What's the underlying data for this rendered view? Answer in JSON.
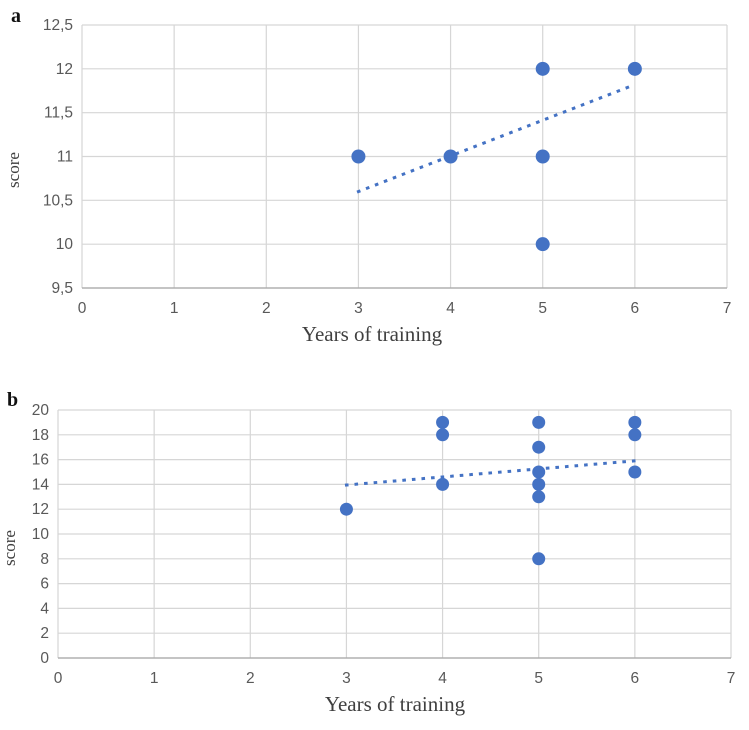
{
  "figure": {
    "background": "#ffffff"
  },
  "chart_data": [
    {
      "type": "scatter",
      "panel_label": "a",
      "title": "",
      "xlabel": "Years of training",
      "ylabel": "score",
      "xlim": [
        0,
        7
      ],
      "ylim": [
        9.5,
        12.5
      ],
      "xticks": [
        0,
        1,
        2,
        3,
        4,
        5,
        6,
        7
      ],
      "xtick_labels": [
        "0",
        "1",
        "2",
        "3",
        "4",
        "5",
        "6",
        "7"
      ],
      "yticks": [
        9.5,
        10,
        10.5,
        11,
        11.5,
        12,
        12.5
      ],
      "ytick_labels": [
        "9,5",
        "10",
        "10,5",
        "11",
        "11,5",
        "12",
        "12,5"
      ],
      "grid": true,
      "legend": "none",
      "points": [
        {
          "x": 3,
          "y": 11
        },
        {
          "x": 4,
          "y": 11
        },
        {
          "x": 5,
          "y": 10
        },
        {
          "x": 5,
          "y": 11
        },
        {
          "x": 5,
          "y": 12
        },
        {
          "x": 6,
          "y": 12
        }
      ],
      "trendline": {
        "style": "dotted",
        "x1": 3,
        "y1": 10.6,
        "x2": 6,
        "y2": 11.82
      },
      "colors": {
        "marker": "#4472C4",
        "trendline": "#4472C4",
        "gridline": "#D6D6D6",
        "axis_line": "#A6A6A6",
        "tick_text": "#595959",
        "axis_title_text": "#3F3F3F"
      }
    },
    {
      "type": "scatter",
      "panel_label": "b",
      "title": "",
      "xlabel": "Years of training",
      "ylabel": "score",
      "xlim": [
        0,
        7
      ],
      "ylim": [
        0,
        20
      ],
      "xticks": [
        0,
        1,
        2,
        3,
        4,
        5,
        6,
        7
      ],
      "xtick_labels": [
        "0",
        "1",
        "2",
        "3",
        "4",
        "5",
        "6",
        "7"
      ],
      "yticks": [
        0,
        2,
        4,
        6,
        8,
        10,
        12,
        14,
        16,
        18,
        20
      ],
      "ytick_labels": [
        "0",
        "2",
        "4",
        "6",
        "8",
        "10",
        "12",
        "14",
        "16",
        "18",
        "20"
      ],
      "grid": true,
      "legend": "none",
      "points": [
        {
          "x": 3,
          "y": 12
        },
        {
          "x": 4,
          "y": 14
        },
        {
          "x": 4,
          "y": 18
        },
        {
          "x": 4,
          "y": 19
        },
        {
          "x": 5,
          "y": 8
        },
        {
          "x": 5,
          "y": 13
        },
        {
          "x": 5,
          "y": 14
        },
        {
          "x": 5,
          "y": 15
        },
        {
          "x": 5,
          "y": 17
        },
        {
          "x": 5,
          "y": 19
        },
        {
          "x": 6,
          "y": 15
        },
        {
          "x": 6,
          "y": 18
        },
        {
          "x": 6,
          "y": 19
        }
      ],
      "trendline": {
        "style": "dotted",
        "x1": 3,
        "y1": 13.95,
        "x2": 6,
        "y2": 15.9
      },
      "colors": {
        "marker": "#4472C4",
        "trendline": "#4472C4",
        "gridline": "#D6D6D6",
        "axis_line": "#A6A6A6",
        "tick_text": "#595959",
        "axis_title_text": "#3F3F3F"
      }
    }
  ]
}
